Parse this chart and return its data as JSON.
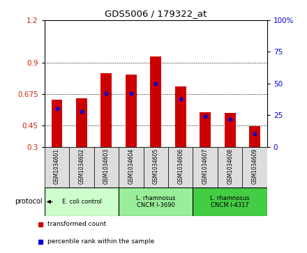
{
  "title": "GDS5006 / 179322_at",
  "samples": [
    "GSM1034601",
    "GSM1034602",
    "GSM1034603",
    "GSM1034604",
    "GSM1034605",
    "GSM1034606",
    "GSM1034607",
    "GSM1034608",
    "GSM1034609"
  ],
  "transformed_count": [
    0.635,
    0.645,
    0.825,
    0.815,
    0.94,
    0.73,
    0.545,
    0.54,
    0.445
  ],
  "percentile_rank": [
    30,
    28,
    42,
    42,
    50,
    38,
    24,
    22,
    10
  ],
  "bar_bottom": 0.3,
  "ylim_left": [
    0.3,
    1.2
  ],
  "ylim_right": [
    0,
    100
  ],
  "yticks_left": [
    0.3,
    0.45,
    0.675,
    0.9,
    1.2
  ],
  "yticks_right": [
    0,
    25,
    50,
    75,
    100
  ],
  "ytick_labels_left": [
    "0.3",
    "0.45",
    "0.675",
    "0.9",
    "1.2"
  ],
  "ytick_labels_right": [
    "0",
    "25",
    "50",
    "75",
    "100%"
  ],
  "bar_color": "#cc0000",
  "dot_color": "#0000cc",
  "protocol_groups": [
    {
      "label": "E. coli control",
      "start": 0,
      "end": 3,
      "color": "#ccffcc"
    },
    {
      "label": "L. rhamnosus\nCNCM I-3690",
      "start": 3,
      "end": 6,
      "color": "#99ee99"
    },
    {
      "label": "L. rhamnosus\nCNCM I-4317",
      "start": 6,
      "end": 9,
      "color": "#44cc44"
    }
  ],
  "background_color": "#ffffff",
  "plot_bg": "#ffffff",
  "sample_cell_color": "#dddddd"
}
